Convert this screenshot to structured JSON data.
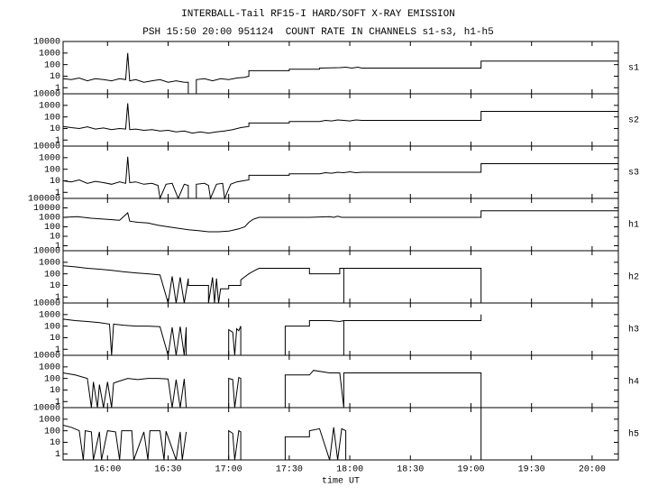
{
  "chart_data": [
    {
      "type": "line",
      "title": "INTERBALL-Tail RF15-I HARD/SOFT X-RAY EMISSION",
      "subtitle": "PSH 15:50 20:00 951124  COUNT RATE IN CHANNELS s1-s3, h1-h5",
      "log_y": true,
      "xlim": [
        938,
        1213
      ],
      "ylim": [
        0.3,
        10000
      ],
      "yticks": [
        1,
        10,
        100,
        1000,
        10000
      ],
      "color": "#000000",
      "series": [
        {
          "name": "s1",
          "x": [
            938,
            942,
            946,
            950,
            954,
            958,
            962,
            966,
            969,
            970,
            971,
            974,
            978,
            982,
            986,
            990,
            994,
            998,
            1000,
            1000,
            1004,
            1004,
            1008,
            1012,
            1016,
            1020,
            1024,
            1028,
            1030,
            1030,
            1050,
            1050,
            1065,
            1065,
            1075,
            1078,
            1081,
            1084,
            1086,
            1145,
            1145,
            1213
          ],
          "values": [
            6,
            5,
            7,
            4,
            6,
            5,
            4,
            6,
            5,
            1000,
            4,
            5,
            3,
            4,
            5,
            3,
            4,
            3,
            3,
            0.3,
            0.3,
            5,
            6,
            4,
            6,
            5,
            7,
            8,
            10,
            30,
            30,
            40,
            40,
            50,
            55,
            60,
            50,
            60,
            50,
            50,
            200,
            200
          ]
        }
      ]
    },
    {
      "type": "line",
      "log_y": true,
      "xlim": [
        938,
        1213
      ],
      "ylim": [
        0.3,
        10000
      ],
      "yticks": [
        1,
        10,
        100,
        1000,
        10000
      ],
      "color": "#000000",
      "series": [
        {
          "name": "s2",
          "x": [
            938,
            942,
            946,
            950,
            954,
            958,
            962,
            966,
            969,
            970,
            971,
            974,
            978,
            982,
            986,
            990,
            994,
            998,
            1002,
            1006,
            1010,
            1014,
            1018,
            1022,
            1026,
            1030,
            1030,
            1050,
            1050,
            1065,
            1068,
            1071,
            1074,
            1077,
            1080,
            1083,
            1086,
            1145,
            1145,
            1213
          ],
          "values": [
            15,
            12,
            10,
            14,
            9,
            11,
            8,
            10,
            9,
            1500,
            8,
            9,
            7,
            8,
            6,
            7,
            5,
            6,
            4,
            5,
            4,
            5,
            6,
            8,
            12,
            15,
            30,
            30,
            40,
            40,
            50,
            45,
            55,
            50,
            45,
            55,
            50,
            50,
            300,
            300
          ]
        }
      ]
    },
    {
      "type": "line",
      "log_y": true,
      "xlim": [
        938,
        1213
      ],
      "ylim": [
        0.3,
        10000
      ],
      "yticks": [
        1,
        10,
        100,
        1000,
        10000
      ],
      "color": "#000000",
      "series": [
        {
          "name": "s3",
          "x": [
            938,
            942,
            946,
            950,
            954,
            958,
            962,
            966,
            969,
            970,
            971,
            974,
            978,
            982,
            985,
            986,
            989,
            992,
            995,
            998,
            1000,
            1000,
            1004,
            1004,
            1008,
            1010,
            1011,
            1014,
            1017,
            1018,
            1021,
            1024,
            1027,
            1030,
            1030,
            1050,
            1050,
            1065,
            1068,
            1071,
            1074,
            1077,
            1080,
            1083,
            1086,
            1145,
            1145,
            1213
          ],
          "values": [
            10,
            8,
            12,
            6,
            9,
            7,
            5,
            8,
            6,
            1200,
            7,
            8,
            5,
            6,
            4,
            0.3,
            5,
            6,
            0.3,
            5,
            4,
            0.3,
            0.3,
            5,
            6,
            4,
            0.3,
            5,
            6,
            0.3,
            5,
            8,
            10,
            12,
            30,
            30,
            40,
            40,
            50,
            45,
            55,
            50,
            60,
            50,
            55,
            55,
            300,
            300
          ]
        }
      ]
    },
    {
      "type": "line",
      "log_y": true,
      "xlim": [
        938,
        1213
      ],
      "ylim": [
        0.3,
        100000
      ],
      "yticks": [
        1,
        10,
        100,
        1000,
        10000,
        100000
      ],
      "color": "#000000",
      "series": [
        {
          "name": "h1",
          "x": [
            938,
            945,
            952,
            960,
            966,
            970,
            971,
            975,
            980,
            985,
            990,
            995,
            1000,
            1005,
            1010,
            1015,
            1020,
            1025,
            1028,
            1030,
            1032,
            1035,
            1060,
            1070,
            1072,
            1074,
            1076,
            1080,
            1145,
            1145,
            1213
          ],
          "values": [
            1000,
            1200,
            800,
            600,
            500,
            3000,
            400,
            300,
            250,
            150,
            100,
            70,
            50,
            40,
            30,
            30,
            35,
            60,
            100,
            300,
            600,
            1000,
            1000,
            1200,
            1000,
            1300,
            1000,
            1000,
            1000,
            5000,
            5000
          ]
        }
      ]
    },
    {
      "type": "line",
      "log_y": true,
      "xlim": [
        938,
        1213
      ],
      "ylim": [
        0.3,
        10000
      ],
      "yticks": [
        1,
        10,
        100,
        1000,
        10000
      ],
      "color": "#000000",
      "series": [
        {
          "name": "h2",
          "x": [
            938,
            944,
            950,
            956,
            962,
            968,
            974,
            980,
            986,
            990,
            992,
            994,
            996,
            998,
            1000,
            1000,
            1010,
            1010,
            1012,
            1013,
            1014,
            1015,
            1016,
            1020,
            1020,
            1026,
            1026,
            1030,
            1033,
            1035,
            1040,
            1060,
            1060,
            1075,
            1075,
            1077,
            1077,
            1077,
            1145,
            1145
          ],
          "values": [
            500,
            400,
            300,
            250,
            200,
            150,
            120,
            100,
            80,
            0.3,
            60,
            0.3,
            50,
            0.3,
            40,
            10,
            10,
            0.3,
            50,
            0.3,
            40,
            0.3,
            5,
            5,
            10,
            10,
            30,
            100,
            200,
            300,
            300,
            300,
            100,
            100,
            300,
            300,
            0.3,
            300,
            300,
            0.3
          ]
        }
      ]
    },
    {
      "type": "line",
      "log_y": true,
      "xlim": [
        938,
        1213
      ],
      "ylim": [
        0.3,
        10000
      ],
      "yticks": [
        1,
        10,
        100,
        1000,
        10000
      ],
      "color": "#000000",
      "series": [
        {
          "name": "h3",
          "x": [
            938,
            944,
            950,
            956,
            961,
            962,
            963,
            968,
            974,
            980,
            986,
            990,
            992,
            994,
            996,
            998,
            999,
            999,
            1000,
            1020,
            1020,
            1022,
            1023,
            1024,
            1025,
            1026,
            1026,
            1027,
            1048,
            1048,
            1060,
            1060,
            1070,
            1075,
            1077,
            1077,
            1077,
            1145,
            1145
          ],
          "values": [
            400,
            300,
            250,
            200,
            150,
            0.3,
            150,
            120,
            100,
            100,
            90,
            0.3,
            80,
            0.3,
            90,
            0.3,
            80,
            0.3,
            null,
            0.3,
            50,
            30,
            0.3,
            60,
            40,
            100,
            0.3,
            null,
            0.3,
            100,
            100,
            300,
            300,
            250,
            300,
            0.3,
            300,
            300,
            1000
          ]
        }
      ]
    },
    {
      "type": "line",
      "log_y": true,
      "xlim": [
        938,
        1213
      ],
      "ylim": [
        0.3,
        10000
      ],
      "yticks": [
        1,
        10,
        100,
        1000,
        10000
      ],
      "color": "#000000",
      "series": [
        {
          "name": "h4",
          "x": [
            938,
            944,
            950,
            952,
            953,
            955,
            956,
            958,
            960,
            962,
            963,
            966,
            970,
            975,
            980,
            985,
            990,
            992,
            994,
            996,
            998,
            999,
            1000,
            1020,
            1020,
            1022,
            1023,
            1025,
            1026,
            1026,
            1027,
            1048,
            1048,
            1060,
            1062,
            1070,
            1075,
            1077,
            1077,
            1077,
            1145,
            1145
          ],
          "values": [
            300,
            200,
            100,
            0.3,
            50,
            0.3,
            30,
            0.3,
            50,
            0.3,
            40,
            60,
            100,
            80,
            100,
            100,
            90,
            0.3,
            80,
            0.3,
            90,
            0.3,
            null,
            0.3,
            100,
            80,
            0.3,
            120,
            100,
            0.3,
            null,
            0.3,
            200,
            200,
            500,
            300,
            300,
            0.3,
            300,
            300,
            300,
            0.3
          ]
        }
      ]
    },
    {
      "type": "line",
      "log_y": true,
      "xlim": [
        938,
        1213
      ],
      "ylim": [
        0.3,
        10000
      ],
      "yticks": [
        1,
        10,
        100,
        1000,
        10000
      ],
      "color": "#000000",
      "x_label": "time UT",
      "xticks": [
        {
          "value": 960,
          "label": "16:00"
        },
        {
          "value": 990,
          "label": "16:30"
        },
        {
          "value": 1020,
          "label": "17:00"
        },
        {
          "value": 1050,
          "label": "17:30"
        },
        {
          "value": 1080,
          "label": "18:00"
        },
        {
          "value": 1110,
          "label": "18:30"
        },
        {
          "value": 1140,
          "label": "19:00"
        },
        {
          "value": 1170,
          "label": "19:30"
        },
        {
          "value": 1200,
          "label": "20:00"
        }
      ],
      "series": [
        {
          "name": "h5",
          "x": [
            938,
            942,
            946,
            948,
            949,
            952,
            953,
            956,
            957,
            960,
            964,
            966,
            967,
            972,
            973,
            978,
            980,
            981,
            986,
            988,
            989,
            994,
            996,
            997,
            999,
            1000,
            1020,
            1020,
            1022,
            1023,
            1025,
            1026,
            1026,
            1027,
            1048,
            1048,
            1060,
            1060,
            1065,
            1070,
            1072,
            1074,
            1076,
            1078,
            1078,
            1079,
            1145,
            1145
          ],
          "values": [
            300,
            200,
            100,
            0.3,
            100,
            80,
            0.3,
            80,
            0.3,
            100,
            80,
            0.3,
            100,
            100,
            0.3,
            80,
            0.3,
            100,
            100,
            0.3,
            90,
            0.3,
            80,
            0.3,
            80,
            null,
            0.3,
            100,
            60,
            0.3,
            100,
            80,
            0.3,
            null,
            0.3,
            30,
            30,
            100,
            150,
            0.3,
            200,
            0.3,
            150,
            100,
            0.3,
            null,
            0.3,
            10000
          ]
        }
      ]
    }
  ]
}
